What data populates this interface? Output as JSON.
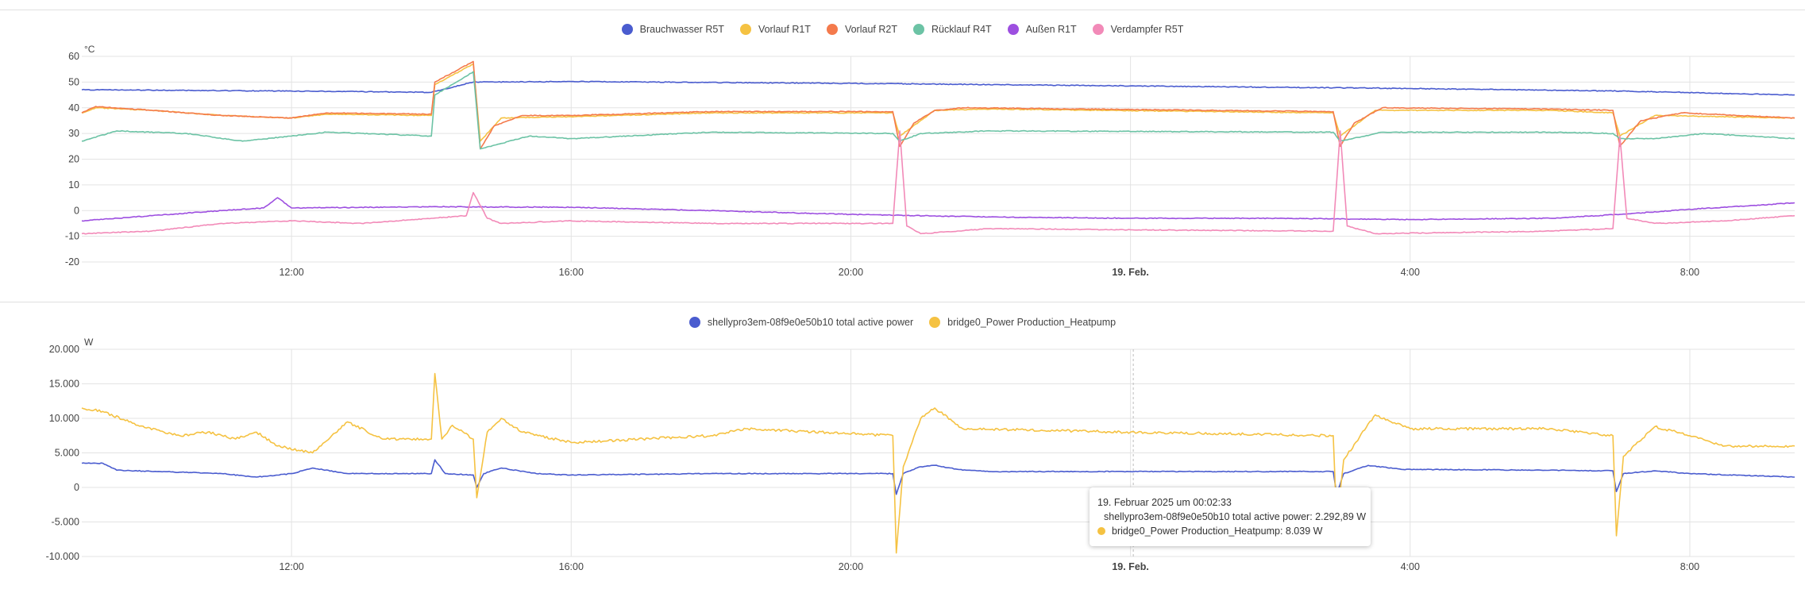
{
  "colors": {
    "Brauchwasser R5T": "#4a5ccf",
    "Vorlauf R1T": "#f5c242",
    "Vorlauf R2T": "#f47a4c",
    "Rücklauf R4T": "#6cc3a5",
    "Außen R1T": "#9d4fe0",
    "Verdampfer R5T": "#f28ab8",
    "shelly": "#4a5ccf",
    "bridge": "#f5c242"
  },
  "chart_data": [
    {
      "type": "line",
      "unit": "°C",
      "ylim": [
        -20,
        60
      ],
      "yticks": [
        "60",
        "50",
        "40",
        "30",
        "20",
        "10",
        "0",
        "-10",
        "-20"
      ],
      "xlim_hours": [
        9.0,
        33.5
      ],
      "xticks": [
        {
          "label": "12:00",
          "hour": 12,
          "bold": false
        },
        {
          "label": "16:00",
          "hour": 16,
          "bold": false
        },
        {
          "label": "20:00",
          "hour": 20,
          "bold": false
        },
        {
          "label": "19. Feb.",
          "hour": 24,
          "bold": true
        },
        {
          "label": "4:00",
          "hour": 28,
          "bold": false
        },
        {
          "label": "8:00",
          "hour": 32,
          "bold": false
        }
      ],
      "grid": true,
      "legend": "top-center",
      "series": [
        {
          "name": "Brauchwasser R5T",
          "points": [
            [
              9.0,
              47
            ],
            [
              12,
              46.5
            ],
            [
              14.0,
              46
            ],
            [
              14.6,
              50
            ],
            [
              16,
              50.2
            ],
            [
              20,
              49.5
            ],
            [
              24,
              48.5
            ],
            [
              28,
              47.5
            ],
            [
              31,
              46.5
            ],
            [
              33.5,
              45
            ]
          ]
        },
        {
          "name": "Vorlauf R1T",
          "points": [
            [
              9.0,
              38
            ],
            [
              9.2,
              40
            ],
            [
              10,
              39
            ],
            [
              11,
              37
            ],
            [
              12,
              36
            ],
            [
              12.5,
              37.5
            ],
            [
              14.0,
              37
            ],
            [
              14.05,
              49
            ],
            [
              14.6,
              57
            ],
            [
              14.7,
              27
            ],
            [
              15,
              36
            ],
            [
              16,
              36.5
            ],
            [
              18,
              38
            ],
            [
              20.6,
              38
            ],
            [
              20.7,
              29
            ],
            [
              21.2,
              39
            ],
            [
              22,
              39.5
            ],
            [
              26.9,
              38
            ],
            [
              27,
              29
            ],
            [
              27.5,
              39
            ],
            [
              30,
              39
            ],
            [
              30.9,
              38
            ],
            [
              31,
              29
            ],
            [
              31.5,
              37
            ],
            [
              33.5,
              36
            ]
          ]
        },
        {
          "name": "Vorlauf R2T",
          "points": [
            [
              9.0,
              38
            ],
            [
              9.2,
              40.5
            ],
            [
              10,
              39
            ],
            [
              11,
              37
            ],
            [
              12,
              36
            ],
            [
              12.5,
              38
            ],
            [
              14.0,
              37.5
            ],
            [
              14.05,
              50
            ],
            [
              14.6,
              58
            ],
            [
              14.7,
              24
            ],
            [
              14.9,
              33
            ],
            [
              15.3,
              37
            ],
            [
              16,
              37
            ],
            [
              18,
              38.5
            ],
            [
              20.6,
              38.5
            ],
            [
              20.7,
              25
            ],
            [
              20.9,
              34
            ],
            [
              21.2,
              39
            ],
            [
              21.6,
              40
            ],
            [
              26.9,
              38.5
            ],
            [
              27,
              25
            ],
            [
              27.2,
              34
            ],
            [
              27.6,
              40
            ],
            [
              30,
              39.5
            ],
            [
              30.9,
              39
            ],
            [
              31,
              25
            ],
            [
              31.3,
              35
            ],
            [
              31.9,
              38
            ],
            [
              33.5,
              36
            ]
          ]
        },
        {
          "name": "Rücklauf R4T",
          "points": [
            [
              9.0,
              27
            ],
            [
              9.5,
              31
            ],
            [
              10.5,
              30
            ],
            [
              11.3,
              27
            ],
            [
              12,
              29
            ],
            [
              12.5,
              30.5
            ],
            [
              14.0,
              29
            ],
            [
              14.05,
              45
            ],
            [
              14.6,
              54
            ],
            [
              14.7,
              24
            ],
            [
              15.4,
              29
            ],
            [
              16,
              28
            ],
            [
              18,
              30.5
            ],
            [
              20.6,
              30
            ],
            [
              20.7,
              27
            ],
            [
              21,
              30
            ],
            [
              22,
              31
            ],
            [
              26.9,
              30.5
            ],
            [
              27,
              27
            ],
            [
              27.6,
              30.5
            ],
            [
              30,
              30.5
            ],
            [
              30.9,
              30
            ],
            [
              31,
              28
            ],
            [
              31.5,
              28
            ],
            [
              32.2,
              30
            ],
            [
              33.5,
              28
            ]
          ]
        },
        {
          "name": "Außen R1T",
          "points": [
            [
              9.0,
              -4
            ],
            [
              10,
              -2
            ],
            [
              11,
              0
            ],
            [
              11.6,
              1
            ],
            [
              11.8,
              5
            ],
            [
              12,
              1
            ],
            [
              14,
              1.5
            ],
            [
              16,
              1.3
            ],
            [
              18,
              0
            ],
            [
              20,
              -1.5
            ],
            [
              22,
              -2.5
            ],
            [
              24,
              -3
            ],
            [
              26,
              -3
            ],
            [
              28,
              -3.5
            ],
            [
              30,
              -3
            ],
            [
              31,
              -1.5
            ],
            [
              32,
              0.5
            ],
            [
              33.5,
              3
            ]
          ]
        },
        {
          "name": "Verdampfer R5T",
          "points": [
            [
              9.0,
              -9
            ],
            [
              10,
              -8
            ],
            [
              11,
              -5
            ],
            [
              12,
              -4
            ],
            [
              13,
              -5
            ],
            [
              14,
              -3
            ],
            [
              14.5,
              -2
            ],
            [
              14.6,
              7
            ],
            [
              14.8,
              -3
            ],
            [
              15,
              -5
            ],
            [
              16,
              -4
            ],
            [
              18,
              -5
            ],
            [
              20.6,
              -5
            ],
            [
              20.7,
              31
            ],
            [
              20.8,
              -6
            ],
            [
              21,
              -9
            ],
            [
              22,
              -7
            ],
            [
              24,
              -7.5
            ],
            [
              26.9,
              -8
            ],
            [
              27,
              31
            ],
            [
              27.1,
              -6
            ],
            [
              27.5,
              -9
            ],
            [
              30,
              -8
            ],
            [
              30.9,
              -7
            ],
            [
              31,
              29
            ],
            [
              31.1,
              -3
            ],
            [
              31.5,
              -5
            ],
            [
              32.5,
              -4
            ],
            [
              33.5,
              -2
            ]
          ]
        }
      ]
    },
    {
      "type": "line",
      "unit": "W",
      "ylim": [
        -10000,
        20000
      ],
      "yticks": [
        "20.000",
        "15.000",
        "10.000",
        "5.000",
        "0",
        "-5.000",
        "-10.000"
      ],
      "xlim_hours": [
        9.0,
        33.5
      ],
      "xticks": [
        {
          "label": "12:00",
          "hour": 12,
          "bold": false
        },
        {
          "label": "16:00",
          "hour": 16,
          "bold": false
        },
        {
          "label": "20:00",
          "hour": 20,
          "bold": false
        },
        {
          "label": "19. Feb.",
          "hour": 24,
          "bold": true
        },
        {
          "label": "4:00",
          "hour": 28,
          "bold": false
        },
        {
          "label": "8:00",
          "hour": 32,
          "bold": false
        }
      ],
      "grid": true,
      "legend": "top-center",
      "cursor_hour": 24.04,
      "series": [
        {
          "name": "shellypro3em-08f9e0e50b10 total active power",
          "points": [
            [
              9.0,
              3500
            ],
            [
              9.3,
              3500
            ],
            [
              9.5,
              2500
            ],
            [
              11,
              2000
            ],
            [
              11.5,
              1500
            ],
            [
              12,
              2000
            ],
            [
              12.3,
              2800
            ],
            [
              12.8,
              2000
            ],
            [
              14.0,
              2000
            ],
            [
              14.05,
              4000
            ],
            [
              14.2,
              2000
            ],
            [
              14.6,
              1800
            ],
            [
              14.65,
              0
            ],
            [
              14.75,
              2000
            ],
            [
              15,
              2800
            ],
            [
              15.5,
              2000
            ],
            [
              16,
              1800
            ],
            [
              18,
              2000
            ],
            [
              20.6,
              2000
            ],
            [
              20.65,
              -1000
            ],
            [
              20.75,
              2000
            ],
            [
              21,
              3000
            ],
            [
              21.2,
              3200
            ],
            [
              21.6,
              2500
            ],
            [
              22,
              2300
            ],
            [
              24,
              2300
            ],
            [
              26.9,
              2300
            ],
            [
              26.95,
              -1000
            ],
            [
              27.05,
              2000
            ],
            [
              27.4,
              3200
            ],
            [
              27.9,
              2600
            ],
            [
              30,
              2500
            ],
            [
              30.9,
              2400
            ],
            [
              30.95,
              -600
            ],
            [
              31.05,
              2000
            ],
            [
              31.5,
              2400
            ],
            [
              32,
              2000
            ],
            [
              33.5,
              1500
            ]
          ]
        },
        {
          "name": "bridge0_Power Production_Heatpump",
          "points": [
            [
              9.0,
              11500
            ],
            [
              9.3,
              11000
            ],
            [
              9.8,
              9000
            ],
            [
              10.4,
              7500
            ],
            [
              10.8,
              8000
            ],
            [
              11.2,
              7000
            ],
            [
              11.5,
              8000
            ],
            [
              11.8,
              6000
            ],
            [
              12.3,
              5000
            ],
            [
              12.8,
              9500
            ],
            [
              13.3,
              7000
            ],
            [
              14.0,
              7000
            ],
            [
              14.05,
              16500
            ],
            [
              14.15,
              7000
            ],
            [
              14.3,
              9000
            ],
            [
              14.6,
              7000
            ],
            [
              14.65,
              -1500
            ],
            [
              14.8,
              8000
            ],
            [
              15,
              10000
            ],
            [
              15.3,
              8000
            ],
            [
              16,
              6500
            ],
            [
              18,
              7500
            ],
            [
              18.5,
              8500
            ],
            [
              20.6,
              7500
            ],
            [
              20.65,
              -9500
            ],
            [
              20.75,
              3000
            ],
            [
              21,
              10000
            ],
            [
              21.2,
              11500
            ],
            [
              21.6,
              8500
            ],
            [
              24,
              8000
            ],
            [
              26.9,
              7500
            ],
            [
              26.95,
              -5000
            ],
            [
              27.05,
              4000
            ],
            [
              27.5,
              10500
            ],
            [
              28,
              8500
            ],
            [
              30,
              8500
            ],
            [
              30.9,
              7500
            ],
            [
              30.95,
              -7000
            ],
            [
              31.05,
              4500
            ],
            [
              31.5,
              8800
            ],
            [
              32,
              7500
            ],
            [
              32.5,
              6000
            ],
            [
              33.5,
              6000
            ]
          ]
        }
      ]
    }
  ],
  "tooltip": {
    "title": "19. Februar 2025 um 00:02:33",
    "rows": [
      {
        "label": "shellypro3em-08f9e0e50b10 total active power: 2.292,89 W",
        "color": "#4a5ccf"
      },
      {
        "label": "bridge0_Power Production_Heatpump: 8.039 W",
        "color": "#f5c242"
      }
    ]
  }
}
